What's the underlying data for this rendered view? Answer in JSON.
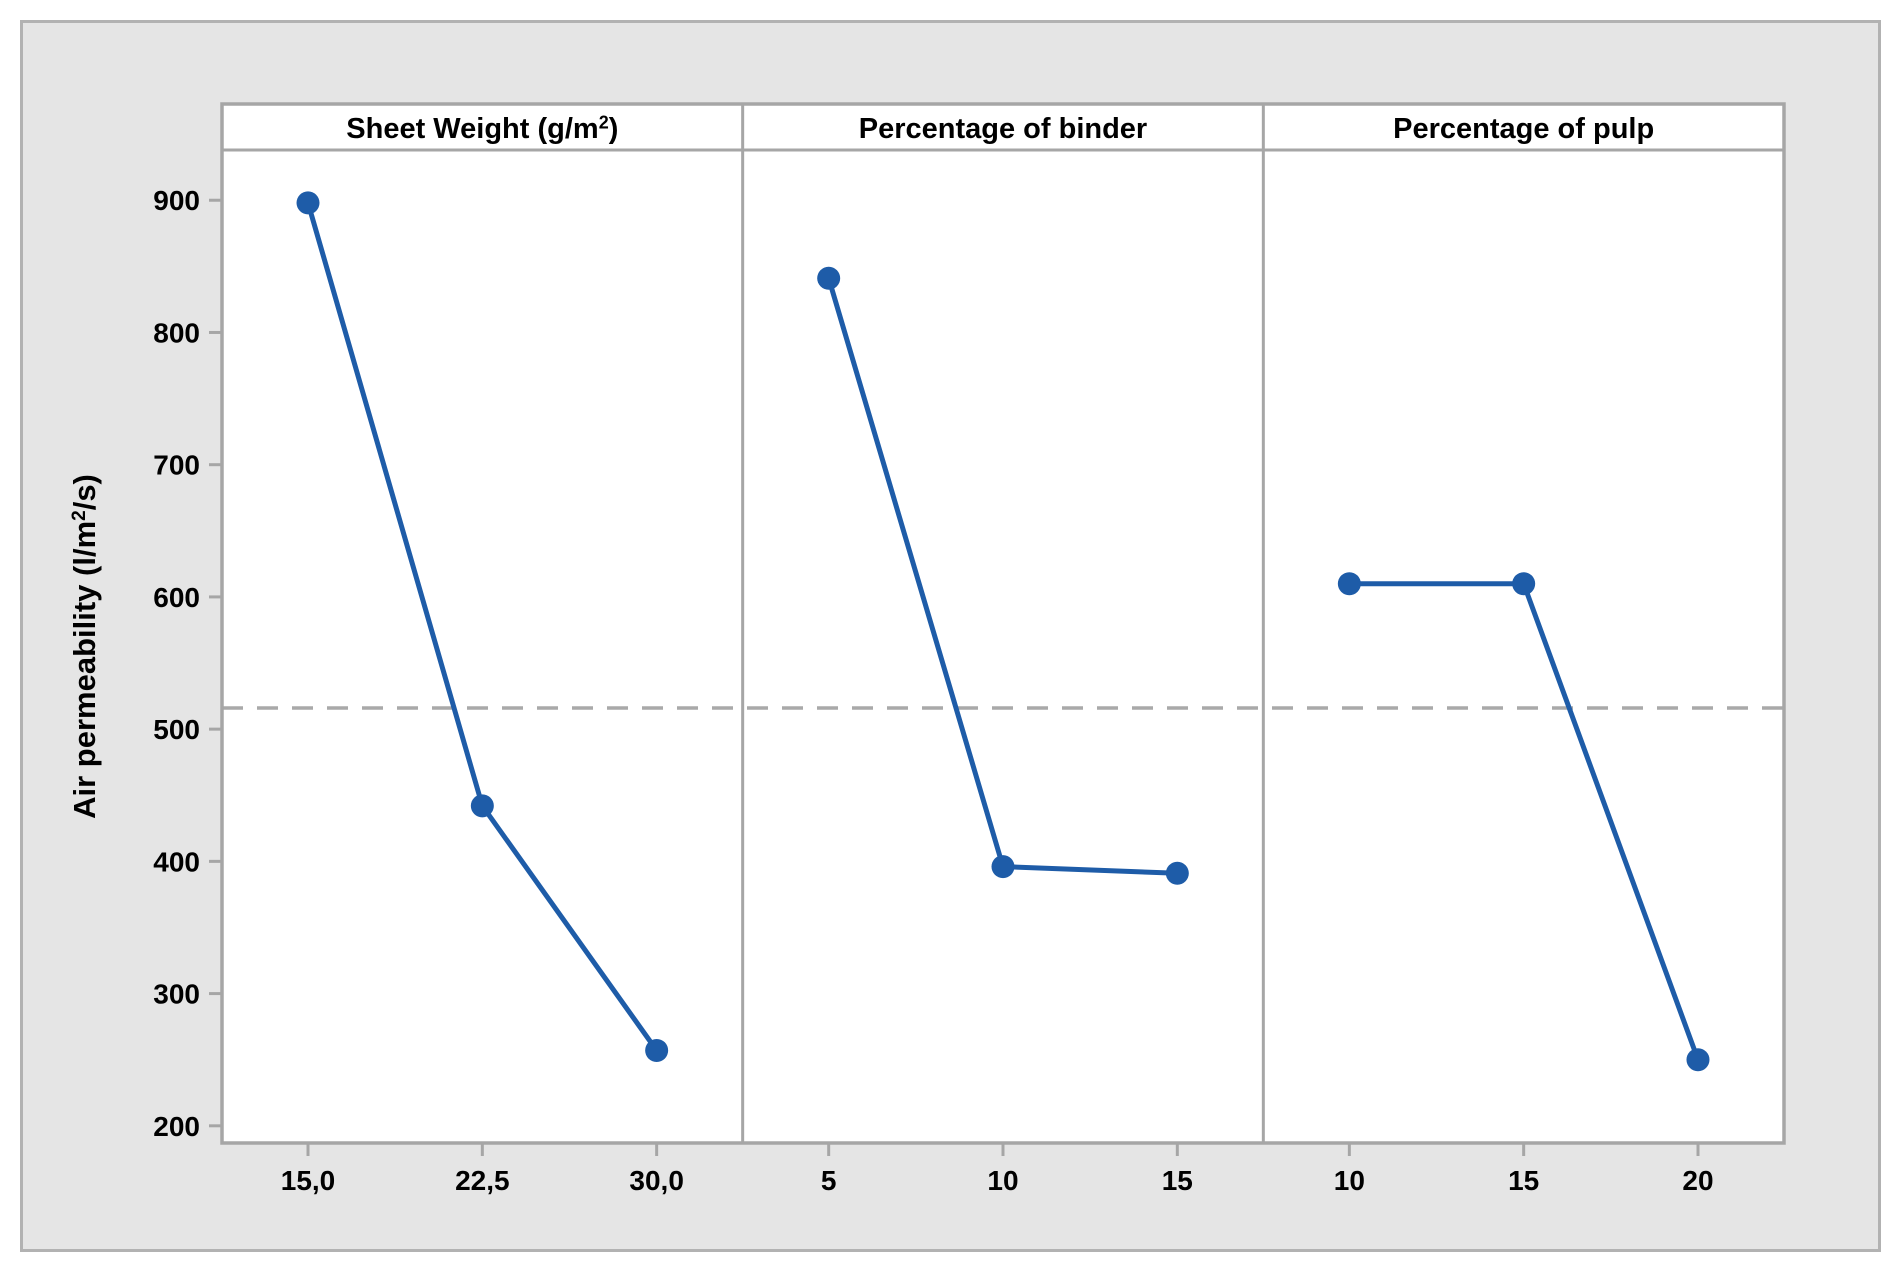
{
  "figure": {
    "background": "#ffffff",
    "canvas_color": "#e5e5e5",
    "canvas_border_color": "#b2b2b2",
    "text_color": "#000000"
  },
  "chart_data": {
    "type": "line",
    "plot_style": "main-effects-plot",
    "title": "",
    "ylabel": "Air permeability (l/m²/s)",
    "y_ticks": [
      900,
      800,
      700,
      600,
      500,
      400,
      300,
      200
    ],
    "y_tick_labels": [
      "900",
      "800",
      "700",
      "600",
      "500",
      "400",
      "300",
      "200"
    ],
    "y_range": [
      187,
      938
    ],
    "grid": false,
    "legend": "none",
    "frame_color": "#a6a6a6",
    "series_color": "#1e5ca8",
    "reference_line": {
      "value": 516,
      "style": "dashed",
      "color": "#a9a9a9"
    },
    "panels": [
      {
        "title": "Sheet Weight (g/m²)",
        "categories": [
          "15,0",
          "22,5",
          "30,0"
        ],
        "values": [
          898,
          442,
          257
        ]
      },
      {
        "title": "Percentage of binder",
        "categories": [
          "5",
          "10",
          "15"
        ],
        "values": [
          841,
          396,
          391
        ]
      },
      {
        "title": "Percentage of pulp",
        "categories": [
          "10",
          "15",
          "20"
        ],
        "values": [
          610,
          610,
          250
        ]
      }
    ]
  }
}
